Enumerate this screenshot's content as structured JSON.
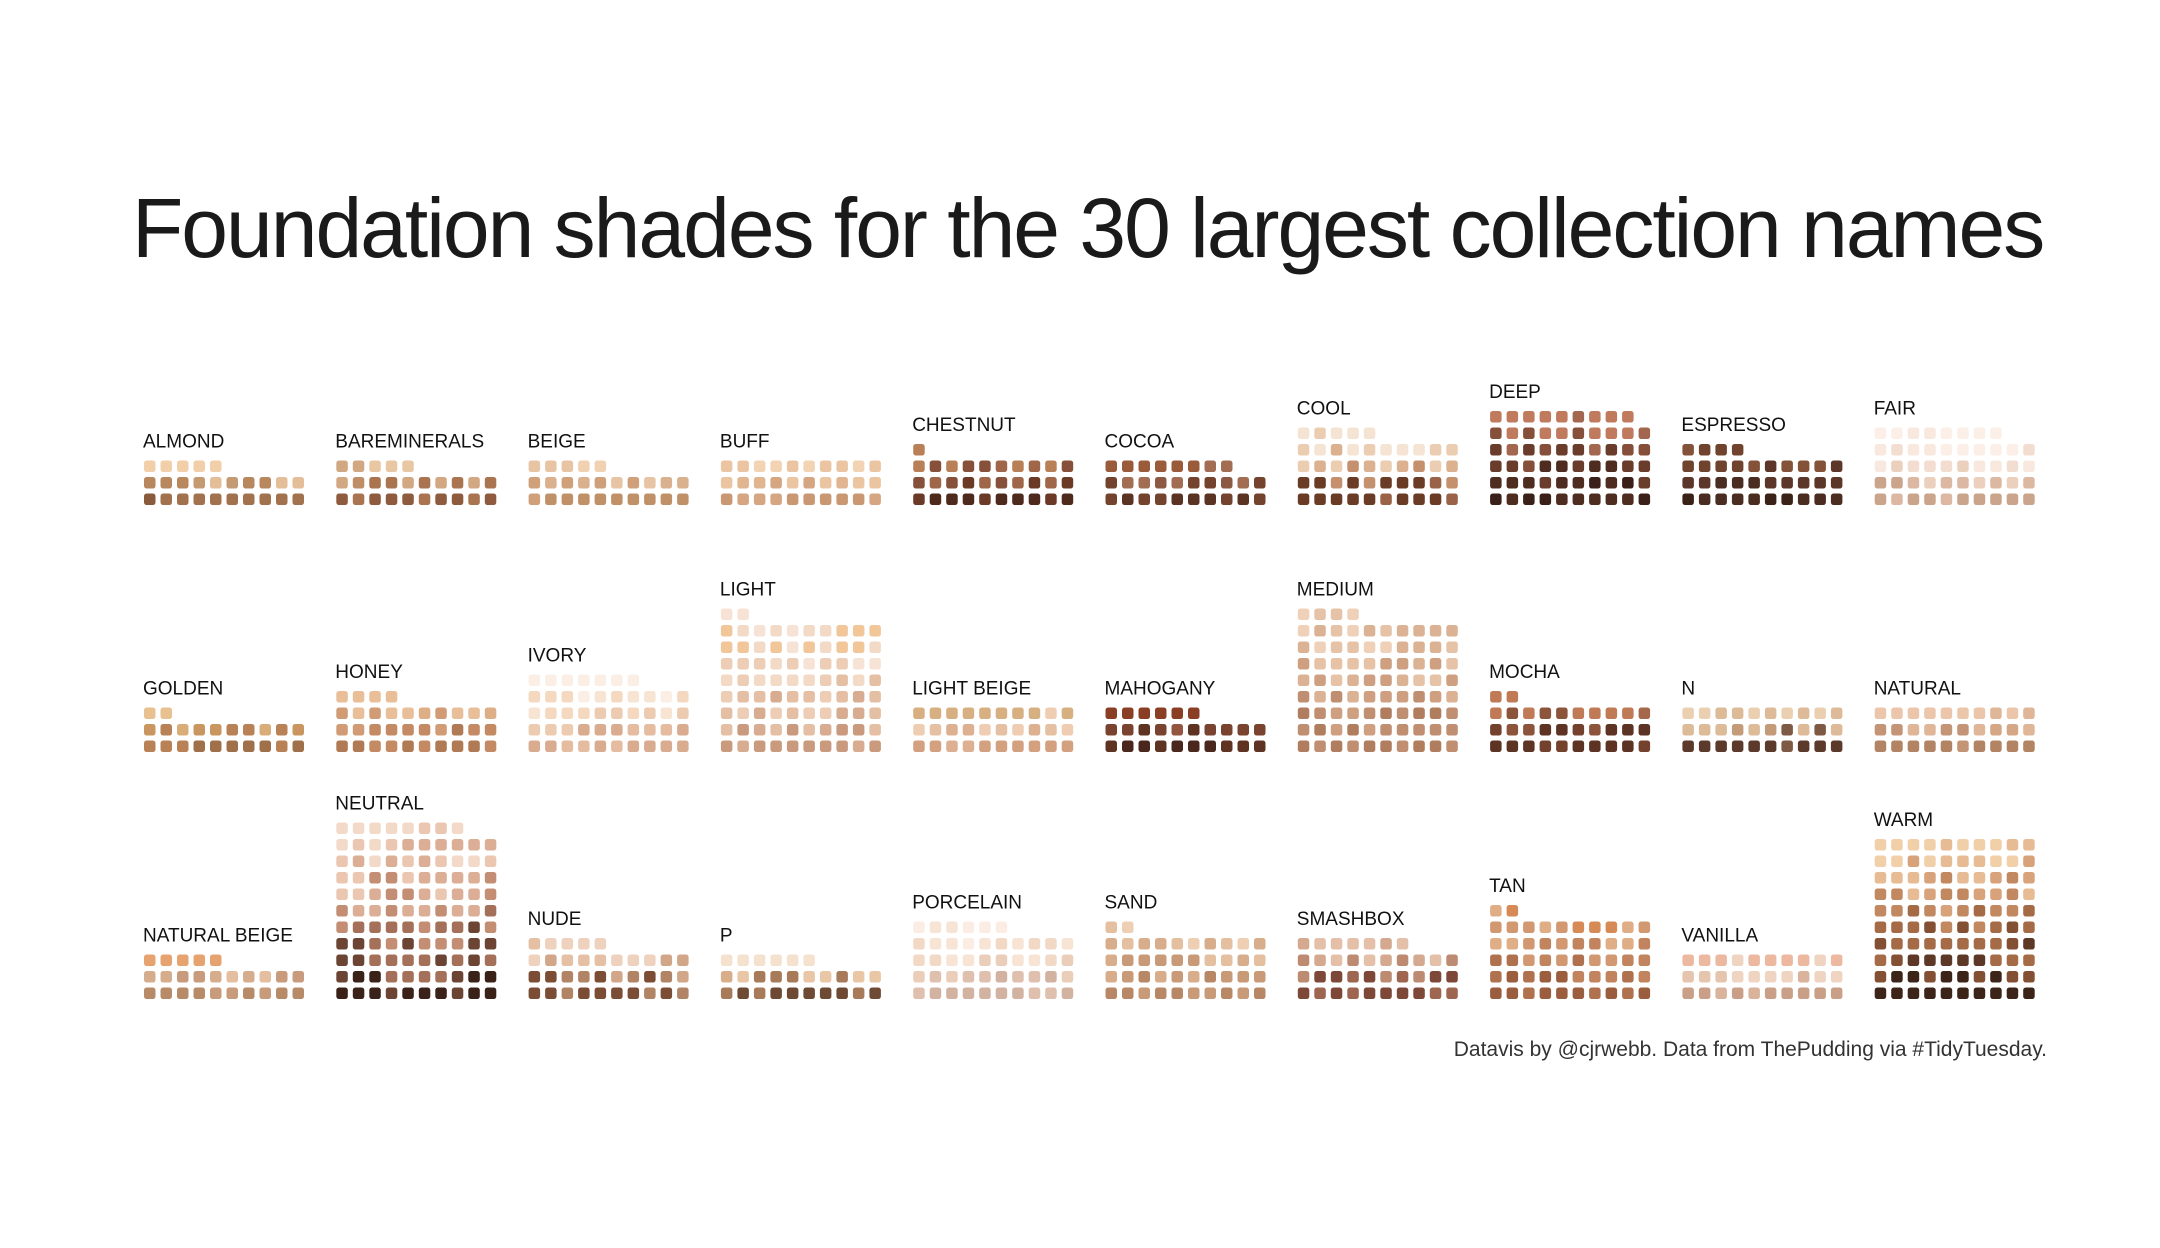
{
  "title": "Foundation shades for the 30 largest collection names",
  "caption": "Datavis by @cjrwebb. Data from ThePudding via #TidyTuesday.",
  "chart_data": {
    "type": "waffle",
    "title": "Foundation shades for the 30 largest collection names",
    "layout": {
      "columns": 10,
      "panel_rows": 3,
      "panel_cols": 10,
      "fill": "bottom-up"
    },
    "panels": [
      {
        "name": "ALMOND",
        "count": 25,
        "palette": [
          "#a2714e",
          "#8a5a3c",
          "#b8875e",
          "#c49a72",
          "#e3be98",
          "#f0cfa9"
        ]
      },
      {
        "name": "BAREMINERALS",
        "count": 25,
        "palette": [
          "#8e5b3f",
          "#a9744f",
          "#c08e66",
          "#d2a883",
          "#e8c7a3"
        ]
      },
      {
        "name": "BEIGE",
        "count": 25,
        "palette": [
          "#c09068",
          "#cfa07a",
          "#d9b18f",
          "#e7c4a3",
          "#f0d2b2"
        ]
      },
      {
        "name": "BUFF",
        "count": 30,
        "palette": [
          "#c99771",
          "#d6a683",
          "#e0b590",
          "#ebc5a2",
          "#f2d3b3"
        ]
      },
      {
        "name": "CHESTNUT",
        "count": 31,
        "palette": [
          "#4e2a1c",
          "#6b3a27",
          "#87503a",
          "#a0664a",
          "#b98058",
          "#c98a4b"
        ]
      },
      {
        "name": "COCOA",
        "count": 28,
        "palette": [
          "#5a3322",
          "#74432e",
          "#8c5a42",
          "#a36d54",
          "#9a5b3b"
        ]
      },
      {
        "name": "COOL",
        "count": 45,
        "palette": [
          "#6b3c25",
          "#9a6246",
          "#c4906e",
          "#dbb190",
          "#ebcdb2",
          "#f5e3d3"
        ]
      },
      {
        "name": "DEEP",
        "count": 59,
        "palette": [
          "#3a2018",
          "#4e2c20",
          "#6a3c2b",
          "#854f3a",
          "#a2674e",
          "#c07a5d"
        ]
      },
      {
        "name": "ESPRESSO",
        "count": 34,
        "palette": [
          "#3b2219",
          "#4b2c20",
          "#5c3628",
          "#70432f",
          "#845238"
        ]
      },
      {
        "name": "FAIR",
        "count": 48,
        "palette": [
          "#caa48b",
          "#dcb8a2",
          "#ebd0be",
          "#f3ddd0",
          "#f8e8de",
          "#fbefe7"
        ]
      },
      {
        "name": "GOLDEN",
        "count": 22,
        "palette": [
          "#a0704a",
          "#b98156",
          "#c9965f",
          "#d9ad78",
          "#e7c290"
        ]
      },
      {
        "name": "HONEY",
        "count": 34,
        "palette": [
          "#b07a55",
          "#c48a63",
          "#d19c75",
          "#deae87",
          "#e8bf98"
        ]
      },
      {
        "name": "IVORY",
        "count": 47,
        "palette": [
          "#d9ab8f",
          "#e5bca0",
          "#edcbb0",
          "#f4d8c0",
          "#f8e4d3",
          "#fbeee4"
        ]
      },
      {
        "name": "LIGHT",
        "count": 82,
        "palette": [
          "#c99a7d",
          "#d8ac90",
          "#e4bfa3",
          "#edcdb5",
          "#f3dac7",
          "#f7e3d5",
          "#f1c79a"
        ]
      },
      {
        "name": "LIGHT BEIGE",
        "count": 30,
        "palette": [
          "#d3a080",
          "#ddb092",
          "#e6c0a2",
          "#efcdb2",
          "#d6b080"
        ]
      },
      {
        "name": "MAHOGANY",
        "count": 26,
        "palette": [
          "#4a271c",
          "#5f3322",
          "#7a4330",
          "#935440",
          "#8a3f25"
        ]
      },
      {
        "name": "MEDIUM",
        "count": 84,
        "palette": [
          "#b07e5f",
          "#c08e70",
          "#cea081",
          "#dbb294",
          "#e6c3a7",
          "#eed1b8"
        ]
      },
      {
        "name": "MOCHA",
        "count": 32,
        "palette": [
          "#5d3324",
          "#74412d",
          "#8c543a",
          "#a5684a",
          "#c07a55"
        ]
      },
      {
        "name": "N",
        "count": 30,
        "palette": [
          "#5c3a2b",
          "#7e5944",
          "#c49b78",
          "#ddbb98",
          "#ead0b0"
        ]
      },
      {
        "name": "NATURAL",
        "count": 30,
        "palette": [
          "#b28463",
          "#c49476",
          "#d4a787",
          "#e0b698",
          "#ebc6aa"
        ]
      },
      {
        "name": "NATURAL BEIGE",
        "count": 25,
        "palette": [
          "#b78b68",
          "#c79b7b",
          "#d6ad8c",
          "#e4bf9f",
          "#e7a36f"
        ]
      },
      {
        "name": "NEUTRAL",
        "count": 108,
        "palette": [
          "#3a2219",
          "#6b4434",
          "#a5705a",
          "#c48e74",
          "#dbae95",
          "#ebc6b0",
          "#f3dac8"
        ]
      },
      {
        "name": "NUDE",
        "count": 35,
        "palette": [
          "#7a4d34",
          "#b18466",
          "#d2a688",
          "#e5c0a5",
          "#efd2bd"
        ]
      },
      {
        "name": "P",
        "count": 26,
        "palette": [
          "#6e4a35",
          "#a77b5a",
          "#d8ae8a",
          "#e9c7a6",
          "#f5e2ce"
        ]
      },
      {
        "name": "PORCELAIN",
        "count": 46,
        "palette": [
          "#d2b3a2",
          "#dfbfae",
          "#ebceba",
          "#f2d9c6",
          "#f7e4d5",
          "#fbede3"
        ]
      },
      {
        "name": "SAND",
        "count": 42,
        "palette": [
          "#b88866",
          "#c99a78",
          "#d8ad8b",
          "#e4bfa0",
          "#eecfb3"
        ]
      },
      {
        "name": "SMASHBOX",
        "count": 37,
        "palette": [
          "#7d4838",
          "#9e6650",
          "#bd8a72",
          "#d4a98f",
          "#e3c0a7"
        ]
      },
      {
        "name": "TAN",
        "count": 52,
        "palette": [
          "#9a5e3e",
          "#b0714e",
          "#c2845f",
          "#d29872",
          "#dfae86",
          "#d68a55"
        ]
      },
      {
        "name": "VANILLA",
        "count": 30,
        "palette": [
          "#c9a087",
          "#d9b39b",
          "#e6c5af",
          "#efd4c2",
          "#ecb8a0"
        ]
      },
      {
        "name": "WARM",
        "count": 100,
        "palette": [
          "#3d2418",
          "#5e3826",
          "#835033",
          "#a56a46",
          "#c2885f",
          "#d8a27a",
          "#e7bb93",
          "#f1cfa8"
        ]
      }
    ]
  }
}
